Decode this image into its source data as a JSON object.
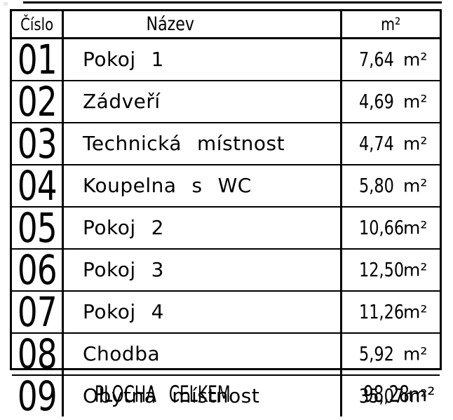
{
  "table": {
    "headers": {
      "number": "Číslo",
      "name": "Název",
      "area": "m²"
    },
    "rows": [
      {
        "number": "01",
        "name": "Pokoj 1",
        "value": "7,64",
        "unit": "m²"
      },
      {
        "number": "02",
        "name": "Zádveří",
        "value": "4,69",
        "unit": "m²"
      },
      {
        "number": "03",
        "name": "Technická místnost",
        "value": "4,74",
        "unit": "m²"
      },
      {
        "number": "04",
        "name": "Koupelna s WC",
        "value": "5,80",
        "unit": "m²"
      },
      {
        "number": "05",
        "name": "Pokoj 2",
        "value": "10,66",
        "unit": "m²"
      },
      {
        "number": "06",
        "name": "Pokoj 3",
        "value": "12,50",
        "unit": "m²"
      },
      {
        "number": "07",
        "name": "Pokoj 4",
        "value": "11,26",
        "unit": "m²"
      },
      {
        "number": "08",
        "name": "Chodba",
        "value": "5,92",
        "unit": "m²"
      },
      {
        "number": "09",
        "name": "Obytná místnost",
        "value": "35,07",
        "unit": "m²"
      }
    ],
    "footer": {
      "label": "PLOCHA CELKEM",
      "value": "98,28",
      "unit": "m²"
    }
  },
  "colors": {
    "line": "#000000",
    "background": "#ffffff",
    "text": "#000000"
  }
}
